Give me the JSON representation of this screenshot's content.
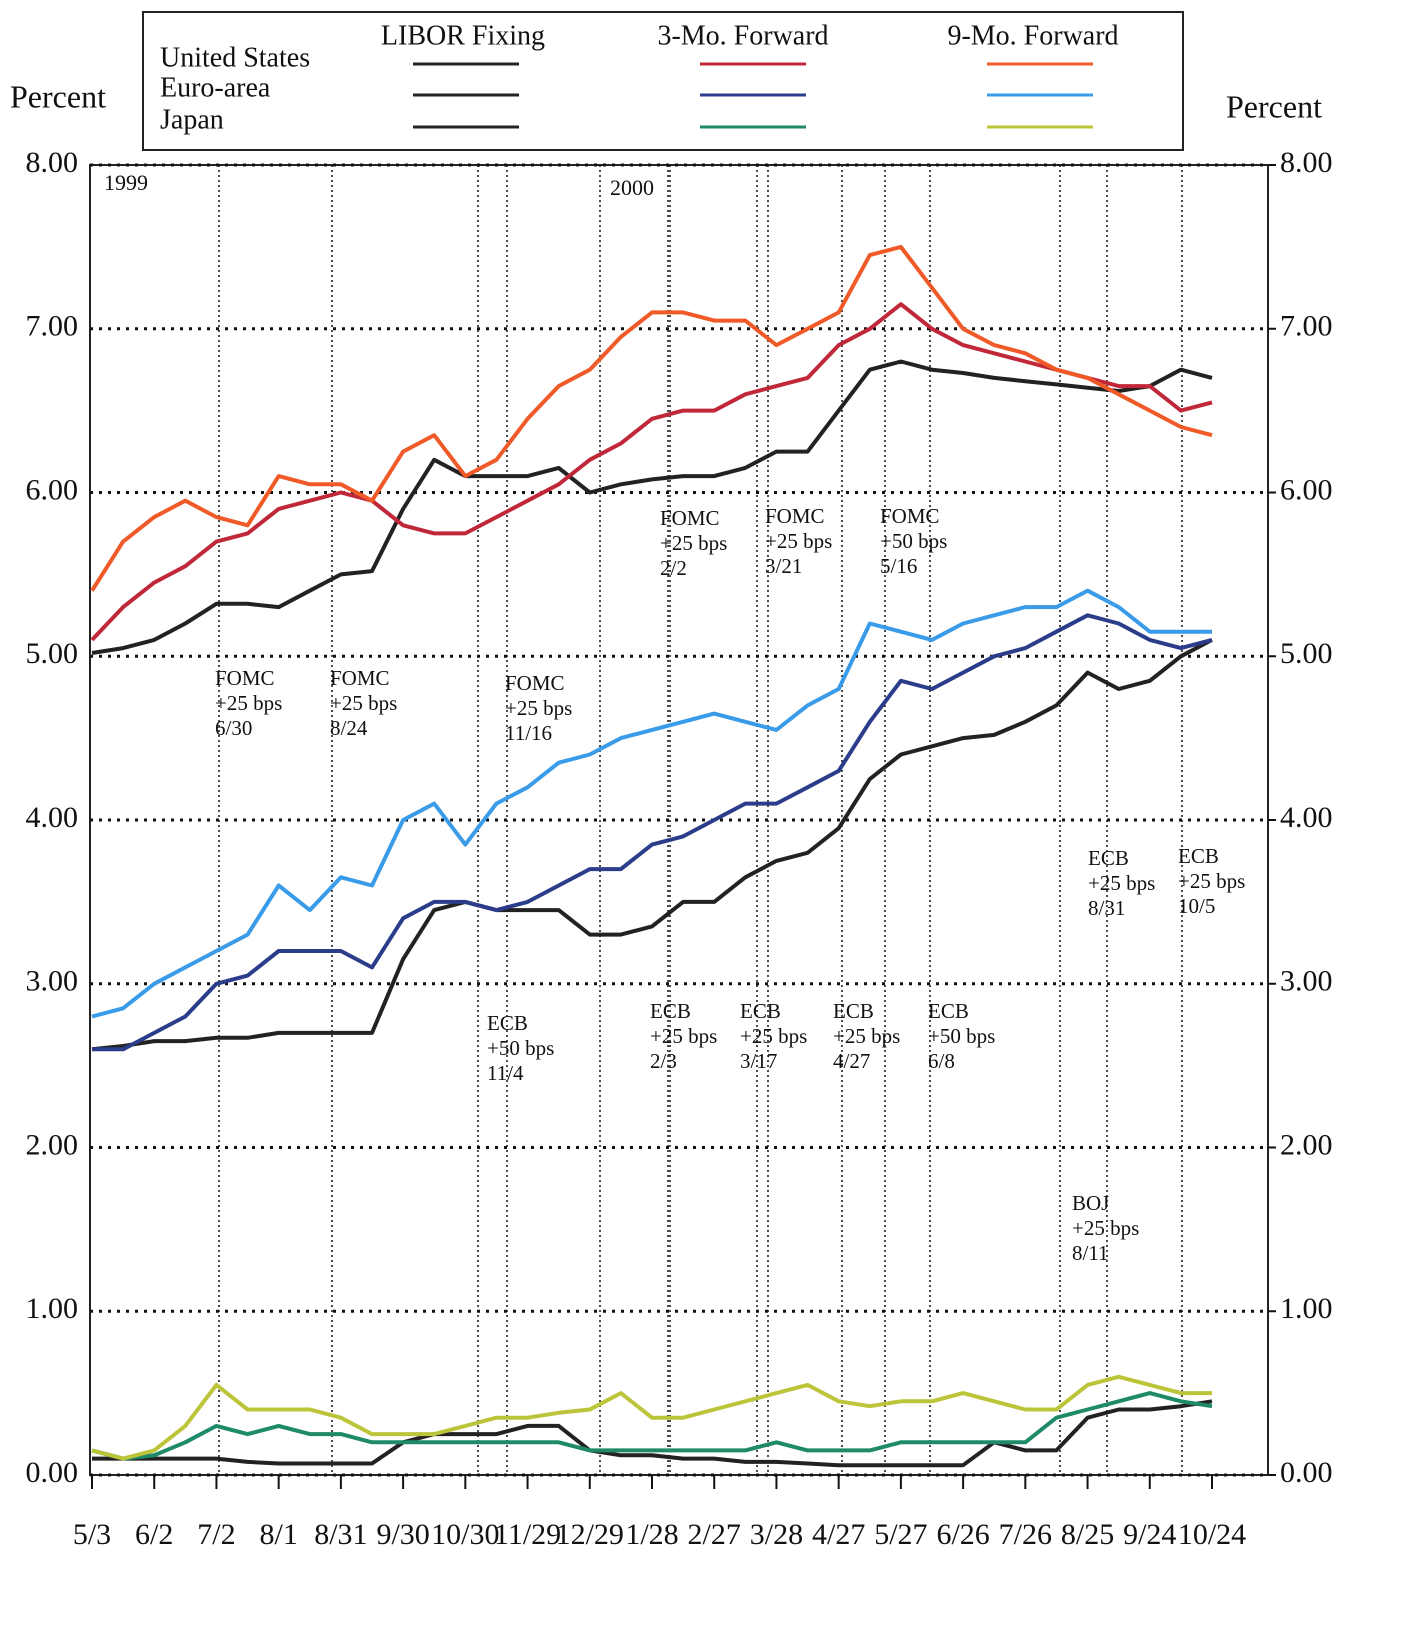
{
  "chart_data": {
    "type": "line",
    "ylabel": "Percent",
    "y2label": "Percent",
    "regions": [
      "United States",
      "Euro-area",
      "Japan"
    ],
    "region_colors": [
      "#e0392b",
      "#3b4f9a",
      "#2e8b57"
    ],
    "measures": [
      "LIBOR Fixing",
      "3-Mo. Forward",
      "9-Mo. Forward"
    ],
    "years": [
      "1999",
      "2000"
    ],
    "categories": [
      "5/3",
      null,
      "6/2",
      null,
      "7/2",
      null,
      "8/1",
      null,
      "8/31",
      null,
      "9/30",
      null,
      "10/30",
      null,
      "11/29",
      null,
      "12/29",
      null,
      "1/28",
      null,
      "2/27",
      null,
      "3/28",
      null,
      "4/27",
      null,
      "5/27",
      null,
      "6/26",
      null,
      "7/26",
      null,
      "8/25",
      null,
      "9/24",
      null,
      "10/24"
    ],
    "ylim": [
      0,
      8
    ],
    "yticks": [
      {
        "value": 0,
        "label": "0.00"
      },
      {
        "value": 1,
        "label": "1.00"
      },
      {
        "value": 2,
        "label": "2.00"
      },
      {
        "value": 3,
        "label": "3.00"
      },
      {
        "value": 4,
        "label": "4.00"
      },
      {
        "value": 5,
        "label": "5.00"
      },
      {
        "value": 6,
        "label": "6.00"
      },
      {
        "value": 7,
        "label": "7.00"
      },
      {
        "value": 8,
        "label": "8.00"
      }
    ],
    "y2lim": [
      0,
      8
    ],
    "y2ticks": [
      {
        "value": 0,
        "label": "0.00"
      },
      {
        "value": 1,
        "label": "1.00"
      },
      {
        "value": 2,
        "label": "2.00"
      },
      {
        "value": 3,
        "label": "3.00"
      },
      {
        "value": 4,
        "label": "4.00"
      },
      {
        "value": 5,
        "label": "5.00"
      },
      {
        "value": 6,
        "label": "6.00"
      },
      {
        "value": 7,
        "label": "7.00"
      },
      {
        "value": 8,
        "label": "8.00"
      }
    ],
    "grid": true,
    "series": [
      {
        "region": 0,
        "measure": 0,
        "color": "#222222",
        "values": [
          5.02,
          5.05,
          5.1,
          5.2,
          5.32,
          5.32,
          5.3,
          5.4,
          5.5,
          5.52,
          5.9,
          6.2,
          6.1,
          6.1,
          6.1,
          6.15,
          6.0,
          6.05,
          6.08,
          6.1,
          6.1,
          6.15,
          6.25,
          6.25,
          6.5,
          6.75,
          6.8,
          6.75,
          6.73,
          6.7,
          6.68,
          6.66,
          6.64,
          6.62,
          6.65,
          6.75,
          6.7
        ]
      },
      {
        "region": 0,
        "measure": 1,
        "color": "#c0283a",
        "values": [
          5.1,
          5.3,
          5.45,
          5.55,
          5.7,
          5.75,
          5.9,
          5.95,
          6.0,
          5.95,
          5.8,
          5.75,
          5.75,
          5.85,
          5.95,
          6.05,
          6.2,
          6.3,
          6.45,
          6.5,
          6.5,
          6.6,
          6.65,
          6.7,
          6.9,
          7.0,
          7.15,
          7.0,
          6.9,
          6.85,
          6.8,
          6.75,
          6.7,
          6.65,
          6.65,
          6.5,
          6.55
        ]
      },
      {
        "region": 0,
        "measure": 2,
        "color": "#f05a28",
        "values": [
          5.4,
          5.7,
          5.85,
          5.95,
          5.85,
          5.8,
          6.1,
          6.05,
          6.05,
          5.95,
          6.25,
          6.35,
          6.1,
          6.2,
          6.45,
          6.65,
          6.75,
          6.95,
          7.1,
          7.1,
          7.05,
          7.05,
          6.9,
          7.0,
          7.1,
          7.45,
          7.5,
          7.25,
          7.0,
          6.9,
          6.85,
          6.75,
          6.7,
          6.6,
          6.5,
          6.4,
          6.35
        ]
      },
      {
        "region": 1,
        "measure": 0,
        "color": "#222222",
        "values": [
          2.6,
          2.62,
          2.65,
          2.65,
          2.67,
          2.67,
          2.7,
          2.7,
          2.7,
          2.7,
          3.15,
          3.45,
          3.5,
          3.45,
          3.45,
          3.45,
          3.3,
          3.3,
          3.35,
          3.5,
          3.5,
          3.65,
          3.75,
          3.8,
          3.95,
          4.25,
          4.4,
          4.45,
          4.5,
          4.52,
          4.6,
          4.7,
          4.9,
          4.8,
          4.85,
          5.0,
          5.1
        ]
      },
      {
        "region": 1,
        "measure": 1,
        "color": "#2b3d8a",
        "values": [
          2.6,
          2.6,
          2.7,
          2.8,
          3.0,
          3.05,
          3.2,
          3.2,
          3.2,
          3.1,
          3.4,
          3.5,
          3.5,
          3.45,
          3.5,
          3.6,
          3.7,
          3.7,
          3.85,
          3.9,
          4.0,
          4.1,
          4.1,
          4.2,
          4.3,
          4.6,
          4.85,
          4.8,
          4.9,
          5.0,
          5.05,
          5.15,
          5.25,
          5.2,
          5.1,
          5.05,
          5.1
        ]
      },
      {
        "region": 1,
        "measure": 2,
        "color": "#3a9be8",
        "values": [
          2.8,
          2.85,
          3.0,
          3.1,
          3.2,
          3.3,
          3.6,
          3.45,
          3.65,
          3.6,
          4.0,
          4.1,
          3.85,
          4.1,
          4.2,
          4.35,
          4.4,
          4.5,
          4.55,
          4.6,
          4.65,
          4.6,
          4.55,
          4.7,
          4.8,
          5.2,
          5.15,
          5.1,
          5.2,
          5.25,
          5.3,
          5.3,
          5.4,
          5.3,
          5.15,
          5.15,
          5.15
        ]
      },
      {
        "region": 2,
        "measure": 0,
        "color": "#222222",
        "values": [
          0.1,
          0.1,
          0.1,
          0.1,
          0.1,
          0.08,
          0.07,
          0.07,
          0.07,
          0.07,
          0.2,
          0.25,
          0.25,
          0.25,
          0.3,
          0.3,
          0.15,
          0.12,
          0.12,
          0.1,
          0.1,
          0.08,
          0.08,
          0.07,
          0.06,
          0.06,
          0.06,
          0.06,
          0.06,
          0.2,
          0.15,
          0.15,
          0.35,
          0.4,
          0.4,
          0.42,
          0.45
        ]
      },
      {
        "region": 2,
        "measure": 1,
        "color": "#1e8a6a",
        "values": [
          0.15,
          0.1,
          0.12,
          0.2,
          0.3,
          0.25,
          0.3,
          0.25,
          0.25,
          0.2,
          0.2,
          0.2,
          0.2,
          0.2,
          0.2,
          0.2,
          0.15,
          0.15,
          0.15,
          0.15,
          0.15,
          0.15,
          0.2,
          0.15,
          0.15,
          0.15,
          0.2,
          0.2,
          0.2,
          0.2,
          0.2,
          0.35,
          0.4,
          0.45,
          0.5,
          0.45,
          0.42
        ]
      },
      {
        "region": 2,
        "measure": 2,
        "color": "#bcc43a",
        "values": [
          0.15,
          0.1,
          0.15,
          0.3,
          0.55,
          0.4,
          0.4,
          0.4,
          0.35,
          0.25,
          0.25,
          0.25,
          0.3,
          0.35,
          0.35,
          0.38,
          0.4,
          0.5,
          0.35,
          0.35,
          0.4,
          0.45,
          0.5,
          0.55,
          0.45,
          0.42,
          0.45,
          0.45,
          0.5,
          0.45,
          0.4,
          0.4,
          0.55,
          0.6,
          0.55,
          0.5,
          0.5
        ]
      }
    ],
    "annotations": [
      {
        "lines": [
          "FOMC",
          "+25 bps",
          "6/30"
        ]
      },
      {
        "lines": [
          "FOMC",
          "+25 bps",
          "8/24"
        ]
      },
      {
        "lines": [
          "FOMC",
          "+25 bps",
          "11/16"
        ]
      },
      {
        "lines": [
          "FOMC",
          "+25 bps",
          "2/2"
        ]
      },
      {
        "lines": [
          "FOMC",
          "+25 bps",
          "3/21"
        ]
      },
      {
        "lines": [
          "FOMC",
          "+50 bps",
          "5/16"
        ]
      },
      {
        "lines": [
          "ECB",
          "+50 bps",
          "11/4"
        ]
      },
      {
        "lines": [
          "ECB",
          "+25 bps",
          "2/3"
        ]
      },
      {
        "lines": [
          "ECB",
          "+25 bps",
          "3/17"
        ]
      },
      {
        "lines": [
          "ECB",
          "+25 bps",
          "4/27"
        ]
      },
      {
        "lines": [
          "ECB",
          "+50 bps",
          "6/8"
        ]
      },
      {
        "lines": [
          "ECB",
          "+25 bps",
          "8/31"
        ]
      },
      {
        "lines": [
          "ECB",
          "+25 bps",
          "10/5"
        ]
      },
      {
        "lines": [
          "BOJ",
          "+25 bps",
          "8/11"
        ]
      }
    ]
  }
}
